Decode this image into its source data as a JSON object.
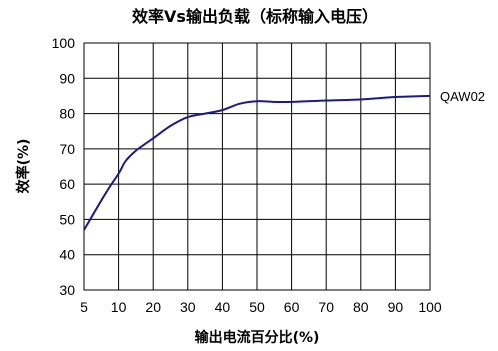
{
  "chart_data": {
    "type": "line",
    "title": "效率Vs输出负载（标称输入电压）",
    "xlabel": "输出电流百分比(%)",
    "ylabel": "效率(%)",
    "xticks": [
      5,
      10,
      20,
      30,
      40,
      50,
      60,
      70,
      80,
      90,
      100
    ],
    "yticks": [
      30,
      40,
      50,
      60,
      70,
      80,
      90,
      100
    ],
    "xlim": [
      5,
      100
    ],
    "ylim": [
      30,
      100
    ],
    "grid": true,
    "series": [
      {
        "name": "QAW02",
        "color": "#1a1a8c",
        "x": [
          5,
          8,
          10,
          12,
          15,
          20,
          25,
          30,
          35,
          40,
          45,
          50,
          55,
          60,
          70,
          80,
          90,
          100
        ],
        "y": [
          47,
          57,
          63,
          66.5,
          69.5,
          73,
          76.5,
          79,
          80,
          81,
          82.8,
          83.5,
          83.3,
          83.3,
          83.7,
          84,
          84.7,
          85
        ]
      }
    ]
  }
}
